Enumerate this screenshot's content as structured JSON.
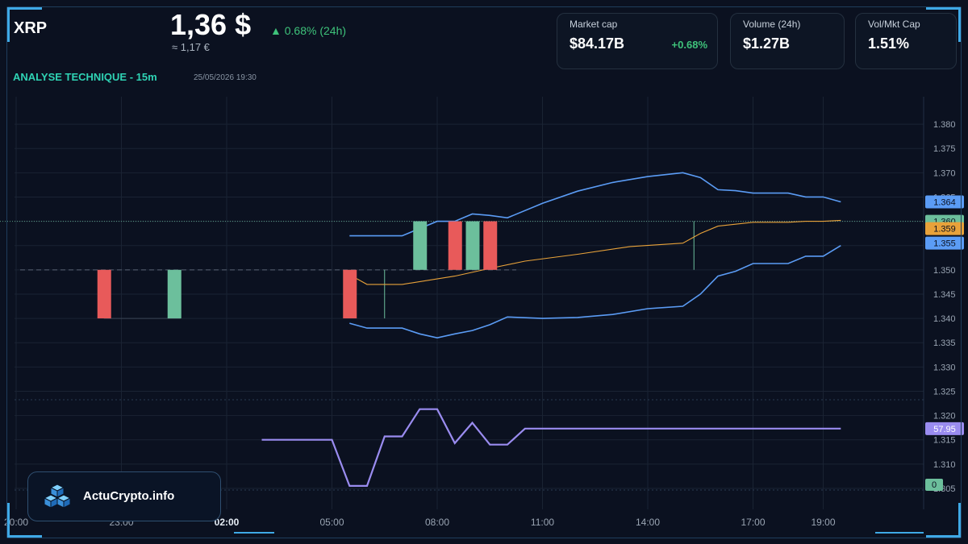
{
  "header": {
    "symbol": "XRP",
    "price": "1,36 $",
    "price_eur": "≈ 1,17 €",
    "change": "▲ 0.68% (24h)",
    "analysis_title": "ANALYSE TECHNIQUE - 15m",
    "datetime": "25/05/2026 19:30"
  },
  "cards": {
    "market_cap": {
      "label": "Market cap",
      "value": "$84.17B",
      "change": "+0.68%"
    },
    "volume": {
      "label": "Volume (24h)",
      "value": "$1.27B"
    },
    "vol_mkt": {
      "label": "Vol/Mkt Cap",
      "value": "1.51%"
    }
  },
  "brand": {
    "name": "ActuCrypto.info"
  },
  "colors": {
    "up": "#6cbf9c",
    "down": "#e85a5a",
    "band": "#5b9cf5",
    "ma": "#e8a23a",
    "rsi": "#9a8cf0",
    "accent": "#3fa9e6"
  },
  "chart_data": {
    "type": "candlestick",
    "interval": "15m",
    "ylim": [
      1.3025,
      1.3825
    ],
    "y_ticks": [
      "1.380",
      "1.375",
      "1.370",
      "1.365",
      "1.360",
      "1.355",
      "1.350",
      "1.345",
      "1.340",
      "1.335",
      "1.330",
      "1.325",
      "1.320",
      "1.315",
      "1.310",
      "1.305"
    ],
    "x_labels": [
      {
        "label": "20:00",
        "i": 0,
        "bold": false
      },
      {
        "label": "23:00",
        "i": 6,
        "bold": false
      },
      {
        "label": "02:00",
        "i": 12,
        "bold": true
      },
      {
        "label": "05:00",
        "i": 18,
        "bold": false
      },
      {
        "label": "08:00",
        "i": 24,
        "bold": false
      },
      {
        "label": "11:00",
        "i": 30,
        "bold": false
      },
      {
        "label": "14:00",
        "i": 36,
        "bold": false
      },
      {
        "label": "17:00",
        "i": 42,
        "bold": false
      },
      {
        "label": "19:00",
        "i": 46,
        "bold": false
      }
    ],
    "candles": [
      {
        "i": 5,
        "open": 1.35,
        "close": 1.34
      },
      {
        "i": 9,
        "open": 1.34,
        "close": 1.35
      },
      {
        "i": 19,
        "open": 1.35,
        "close": 1.34
      },
      {
        "i": 23,
        "open": 1.35,
        "close": 1.36
      },
      {
        "i": 25,
        "open": 1.36,
        "close": 1.35
      },
      {
        "i": 26,
        "open": 1.35,
        "close": 1.36
      },
      {
        "i": 27,
        "open": 1.36,
        "close": 1.35
      }
    ],
    "bollinger_upper": [
      [
        19,
        1.357
      ],
      [
        21,
        1.357
      ],
      [
        22,
        1.357
      ],
      [
        24,
        1.36
      ],
      [
        25,
        1.36
      ],
      [
        26,
        1.3615
      ],
      [
        27,
        1.3612
      ],
      [
        28,
        1.3607
      ],
      [
        30,
        1.3637
      ],
      [
        32,
        1.3662
      ],
      [
        34,
        1.368
      ],
      [
        36,
        1.3692
      ],
      [
        38,
        1.37
      ],
      [
        39,
        1.369
      ],
      [
        40,
        1.3665
      ],
      [
        41,
        1.3663
      ],
      [
        42,
        1.3658
      ],
      [
        44,
        1.3658
      ],
      [
        45,
        1.365
      ],
      [
        46,
        1.365
      ],
      [
        47,
        1.364
      ]
    ],
    "bollinger_middle": [
      [
        19,
        1.349
      ],
      [
        20,
        1.347
      ],
      [
        22,
        1.347
      ],
      [
        25,
        1.3487
      ],
      [
        27,
        1.3503
      ],
      [
        29,
        1.3518
      ],
      [
        32,
        1.3532
      ],
      [
        35,
        1.3548
      ],
      [
        38,
        1.3555
      ],
      [
        39,
        1.3575
      ],
      [
        40,
        1.359
      ],
      [
        42,
        1.3598
      ],
      [
        44,
        1.3598
      ],
      [
        45,
        1.36
      ],
      [
        46,
        1.36
      ],
      [
        47,
        1.3602
      ]
    ],
    "bollinger_lower": [
      [
        19,
        1.339
      ],
      [
        20,
        1.338
      ],
      [
        22,
        1.338
      ],
      [
        23,
        1.3368
      ],
      [
        24,
        1.336
      ],
      [
        25,
        1.3368
      ],
      [
        26,
        1.3375
      ],
      [
        27,
        1.3387
      ],
      [
        28,
        1.3403
      ],
      [
        30,
        1.34
      ],
      [
        32,
        1.3402
      ],
      [
        34,
        1.3408
      ],
      [
        36,
        1.342
      ],
      [
        38,
        1.3425
      ],
      [
        39,
        1.345
      ],
      [
        40,
        1.3487
      ],
      [
        41,
        1.3497
      ],
      [
        42,
        1.3513
      ],
      [
        44,
        1.3513
      ],
      [
        45,
        1.3528
      ],
      [
        46,
        1.3528
      ],
      [
        47,
        1.355
      ]
    ],
    "last_price": 1.36,
    "price_tags": [
      {
        "label": "1.364",
        "value": 1.364,
        "color": "#5b9cf5"
      },
      {
        "label": "1.360",
        "value": 1.36,
        "color": "#6cbf9c"
      },
      {
        "label": "1.359",
        "value": 1.3585,
        "color": "#e8a23a"
      },
      {
        "label": "1.355",
        "value": 1.3555,
        "color": "#5b9cf5"
      }
    ],
    "rsi": {
      "label": "57.95",
      "zero_label": "0",
      "points": [
        [
          14,
          1.315
        ],
        [
          18,
          1.315
        ],
        [
          19,
          1.3055
        ],
        [
          20,
          1.3055
        ],
        [
          21,
          1.3157
        ],
        [
          22,
          1.3157
        ],
        [
          23,
          1.3213
        ],
        [
          24,
          1.3213
        ],
        [
          25,
          1.3143
        ],
        [
          26,
          1.3185
        ],
        [
          27,
          1.314
        ],
        [
          28,
          1.314
        ],
        [
          29,
          1.3173
        ],
        [
          47,
          1.3173
        ]
      ]
    }
  }
}
